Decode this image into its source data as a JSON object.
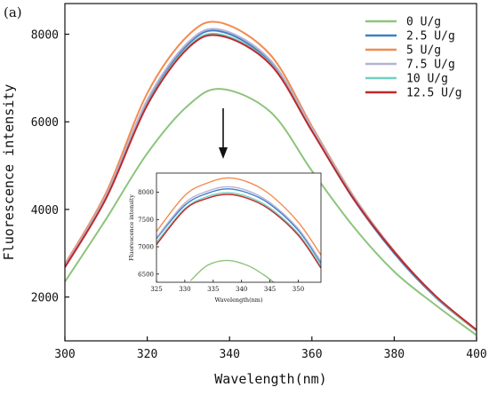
{
  "panel_label": "(a)",
  "chart_data": [
    {
      "type": "line",
      "title": "",
      "xlabel": "Wavelength(nm)",
      "ylabel": "Fluorescence intensity",
      "xlim": [
        300,
        400
      ],
      "ylim": [
        1000,
        8700
      ],
      "xticks": [
        "300",
        "320",
        "340",
        "360",
        "380",
        "400"
      ],
      "yticks": [
        "2000",
        "4000",
        "6000",
        "8000"
      ],
      "legend_position": "top-right",
      "series": [
        {
          "name": "0 U/g",
          "color": "#8dc47c",
          "x": [
            300,
            310,
            320,
            330,
            338,
            350,
            360,
            370,
            380,
            390,
            400
          ],
          "values": [
            2350,
            3780,
            5280,
            6380,
            6750,
            6220,
            4880,
            3620,
            2580,
            1820,
            1130
          ]
        },
        {
          "name": "2.5 U/g",
          "color": "#3f7fc6",
          "x": [
            300,
            310,
            320,
            330,
            338,
            350,
            360,
            370,
            380,
            390,
            400
          ],
          "values": [
            2700,
            4300,
            6450,
            7780,
            8060,
            7350,
            5800,
            4250,
            3000,
            2000,
            1230
          ]
        },
        {
          "name": "5 U/g",
          "color": "#f28c4f",
          "x": [
            300,
            310,
            320,
            330,
            338,
            350,
            360,
            370,
            380,
            390,
            400
          ],
          "values": [
            2750,
            4380,
            6650,
            7980,
            8260,
            7520,
            5900,
            4320,
            3050,
            2020,
            1230
          ]
        },
        {
          "name": "7.5 U/g",
          "color": "#b6b2d6",
          "x": [
            300,
            310,
            320,
            330,
            338,
            350,
            360,
            370,
            380,
            390,
            400
          ],
          "values": [
            2720,
            4320,
            6500,
            7820,
            8100,
            7400,
            5860,
            4300,
            3040,
            2020,
            1240
          ]
        },
        {
          "name": "10 U/g",
          "color": "#6fd1bf",
          "x": [
            300,
            310,
            320,
            330,
            338,
            350,
            360,
            370,
            380,
            390,
            400
          ],
          "values": [
            2680,
            4260,
            6400,
            7720,
            7990,
            7320,
            5800,
            4270,
            3030,
            2020,
            1240
          ]
        },
        {
          "name": "12.5 U/g",
          "color": "#c0282d",
          "x": [
            300,
            310,
            320,
            330,
            338,
            350,
            360,
            370,
            380,
            390,
            400
          ],
          "values": [
            2680,
            4250,
            6380,
            7690,
            7960,
            7300,
            5790,
            4260,
            3030,
            2030,
            1250
          ]
        }
      ]
    },
    {
      "type": "line",
      "title": "",
      "xlabel": "Wavelength(nm)",
      "ylabel": "Fluorescence intensity",
      "xlim": [
        325,
        354
      ],
      "ylim": [
        6350,
        8350
      ],
      "xticks": [
        "325",
        "330",
        "335",
        "340",
        "345",
        "350"
      ],
      "yticks": [
        "6500",
        "7000",
        "7500",
        "8000"
      ],
      "series": [
        {
          "name": "0 U/g",
          "color": "#8dc47c",
          "x": [
            331,
            334,
            337.5,
            341,
            344,
            346.5
          ],
          "values": [
            6380,
            6660,
            6750,
            6660,
            6480,
            6280
          ]
        },
        {
          "name": "2.5 U/g",
          "color": "#3f7fc6",
          "x": [
            325,
            330,
            334,
            337.5,
            341,
            345,
            350,
            354
          ],
          "values": [
            7150,
            7760,
            7980,
            8060,
            7990,
            7780,
            7300,
            6700
          ]
        },
        {
          "name": "5 U/g",
          "color": "#f28c4f",
          "x": [
            325,
            330,
            334,
            337.5,
            341,
            345,
            350,
            354
          ],
          "values": [
            7280,
            7940,
            8170,
            8260,
            8190,
            7960,
            7450,
            6850
          ]
        },
        {
          "name": "7.5 U/g",
          "color": "#b6b2d6",
          "x": [
            325,
            330,
            334,
            337.5,
            341,
            345,
            350,
            354
          ],
          "values": [
            7170,
            7800,
            8020,
            8100,
            8030,
            7810,
            7330,
            6730
          ]
        },
        {
          "name": "10 U/g",
          "color": "#6fd1bf",
          "x": [
            325,
            330,
            334,
            337.5,
            341,
            345,
            350,
            354
          ],
          "values": [
            7080,
            7700,
            7920,
            7990,
            7920,
            7710,
            7240,
            6650
          ]
        },
        {
          "name": "12.5 U/g",
          "color": "#c0282d",
          "x": [
            325,
            330,
            334,
            337.5,
            341,
            345,
            350,
            354
          ],
          "values": [
            7040,
            7680,
            7890,
            7960,
            7890,
            7680,
            7210,
            6610
          ]
        }
      ]
    }
  ]
}
